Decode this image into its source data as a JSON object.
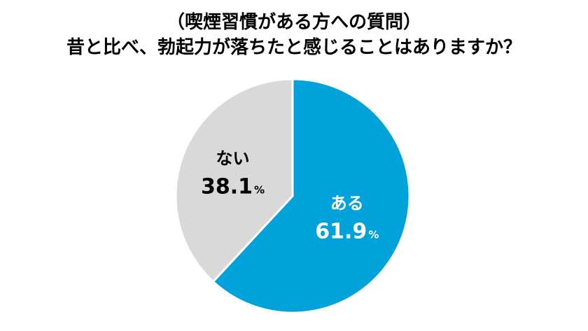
{
  "title": {
    "line1": "（喫煙習慣がある方への質問）",
    "line2": "昔と比べ、勃起力が落ちたと感じることはありますか？"
  },
  "chart_data": {
    "type": "pie",
    "start_angle_deg": 0,
    "direction": "clockwise",
    "slices": [
      {
        "label": "ある",
        "value": 61.9,
        "unit": "%",
        "color": "#00a3d9",
        "text_color": "#ffffff"
      },
      {
        "label": "ない",
        "value": 38.1,
        "unit": "%",
        "color": "#d9d9d9",
        "text_color": "#000000"
      }
    ],
    "separator_color": "#ffffff"
  }
}
